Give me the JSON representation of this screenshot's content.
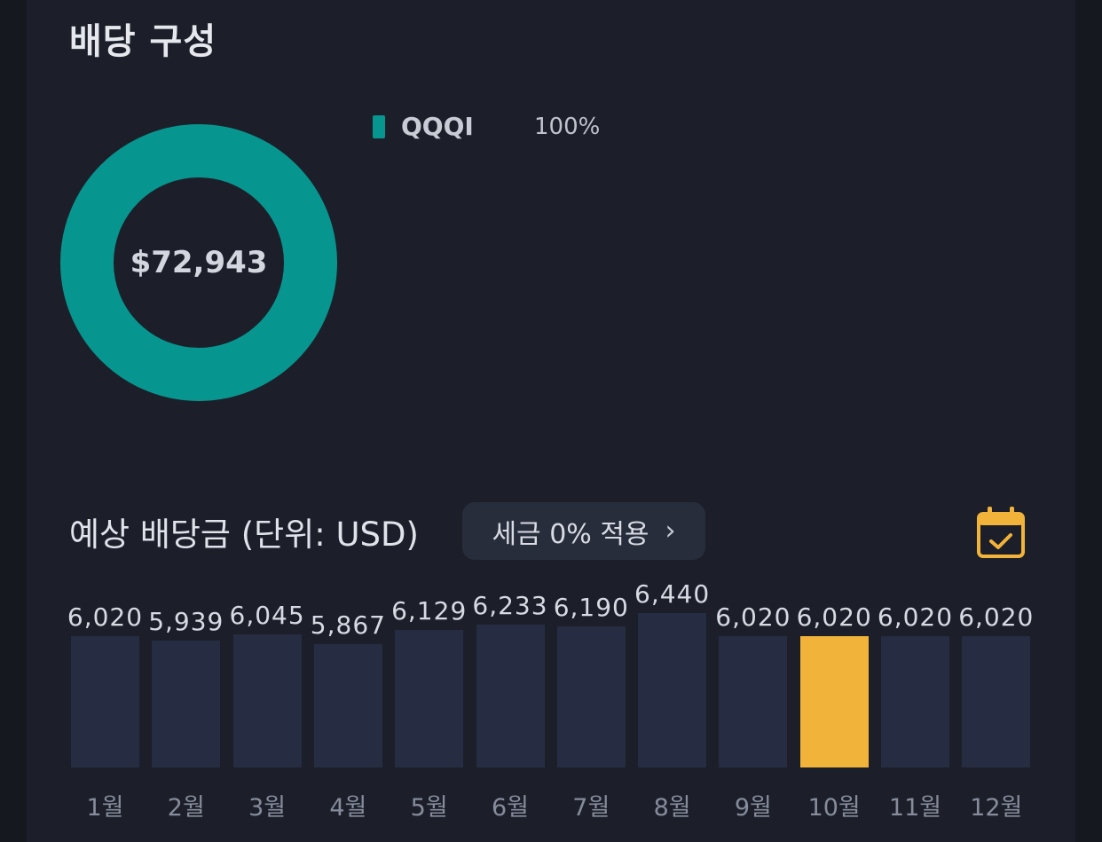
{
  "composition": {
    "title": "배당 구성",
    "total": "$72,943",
    "legend": [
      {
        "name": "QQQI",
        "percent": "100%",
        "share": 1.0,
        "color": "#07968f"
      }
    ]
  },
  "estimate": {
    "title": "예상 배당금 (단위: USD)",
    "tax_button": "세금 0% 적용",
    "calendar_icon": "calendar-check-icon",
    "accent": "#f2b33a",
    "current_month_index": 9
  },
  "chart_data": {
    "type": "bar",
    "categories": [
      "1월",
      "2월",
      "3월",
      "4월",
      "5월",
      "6월",
      "7월",
      "8월",
      "9월",
      "10월",
      "11월",
      "12월"
    ],
    "values": [
      6020,
      5939,
      6045,
      5867,
      6129,
      6233,
      6190,
      6440,
      6020,
      6020,
      6020,
      6020
    ],
    "labels": [
      "6,020",
      "5,939",
      "6,045",
      "5,867",
      "6,129",
      "6,233",
      "6,190",
      "6,440",
      "6,020",
      "6,020",
      "6,020",
      "6,020"
    ],
    "highlight": "10월"
  }
}
